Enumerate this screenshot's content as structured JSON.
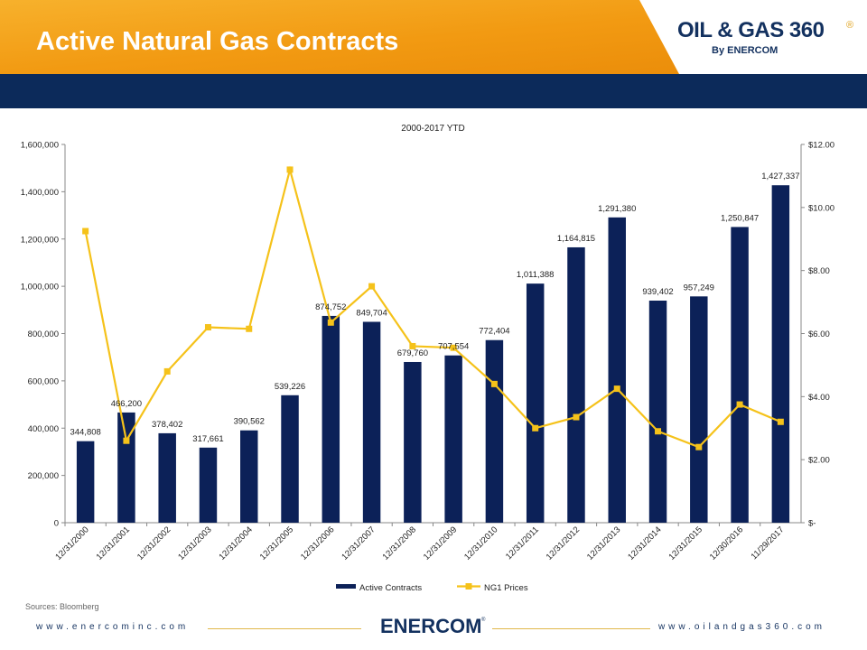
{
  "slide": {
    "title": "Active Natural Gas Contracts",
    "logo_text": "OIL & GAS 360",
    "logo_registered": "®",
    "logo_by": "By ENERCOM",
    "source": "Sources: Bloomberg",
    "footer_left": "www.enercominc.com",
    "footer_right": "www.oilandgas360.com",
    "footer_logo": "ENERCOM",
    "footer_logo_registered": "®"
  },
  "colors": {
    "bar": "#0c2158",
    "line": "#f5c21a",
    "header_orange": "#f29a12",
    "header_blue": "#0c2a5a"
  },
  "chart_data": {
    "type": "bar",
    "title": "2000-2017 YTD",
    "categories": [
      "12/31/2000",
      "12/31/2001",
      "12/31/2002",
      "12/31/2003",
      "12/31/2004",
      "12/31/2005",
      "12/31/2006",
      "12/31/2007",
      "12/31/2008",
      "12/31/2009",
      "12/31/2010",
      "12/31/2011",
      "12/31/2012",
      "12/31/2013",
      "12/31/2014",
      "12/31/2015",
      "12/30/2016",
      "11/29/2017"
    ],
    "series": [
      {
        "name": "Active Contracts",
        "type": "bar",
        "axis": "left",
        "values": [
          344808,
          466200,
          378402,
          317661,
          390562,
          539226,
          874752,
          849704,
          679760,
          707554,
          772404,
          1011388,
          1164815,
          1291380,
          939402,
          957249,
          1250847,
          1427337
        ],
        "labels": [
          "344,808",
          "466,200",
          "378,402",
          "317,661",
          "390,562",
          "539,226",
          "874,752",
          "849,704",
          "679,760",
          "707,554",
          "772,404",
          "1,011,388",
          "1,164,815",
          "1,291,380",
          "939,402",
          "957,249",
          "1,250,847",
          "1,427,337"
        ]
      },
      {
        "name": "NG1 Prices",
        "type": "line",
        "axis": "right",
        "values": [
          9.25,
          2.6,
          4.8,
          6.2,
          6.15,
          11.2,
          6.35,
          7.5,
          5.6,
          5.55,
          4.4,
          3.0,
          3.35,
          4.25,
          2.9,
          2.4,
          3.75,
          3.2
        ]
      }
    ],
    "ylim": [
      0,
      1600000
    ],
    "yticks": [
      "0",
      "200,000",
      "400,000",
      "600,000",
      "800,000",
      "1,000,000",
      "1,200,000",
      "1,400,000",
      "1,600,000"
    ],
    "y2lim": [
      0,
      12
    ],
    "y2ticks": [
      "$-",
      "$2.00",
      "$4.00",
      "$6.00",
      "$8.00",
      "$10.00",
      "$12.00"
    ],
    "legend": "bottom",
    "grid": false
  }
}
